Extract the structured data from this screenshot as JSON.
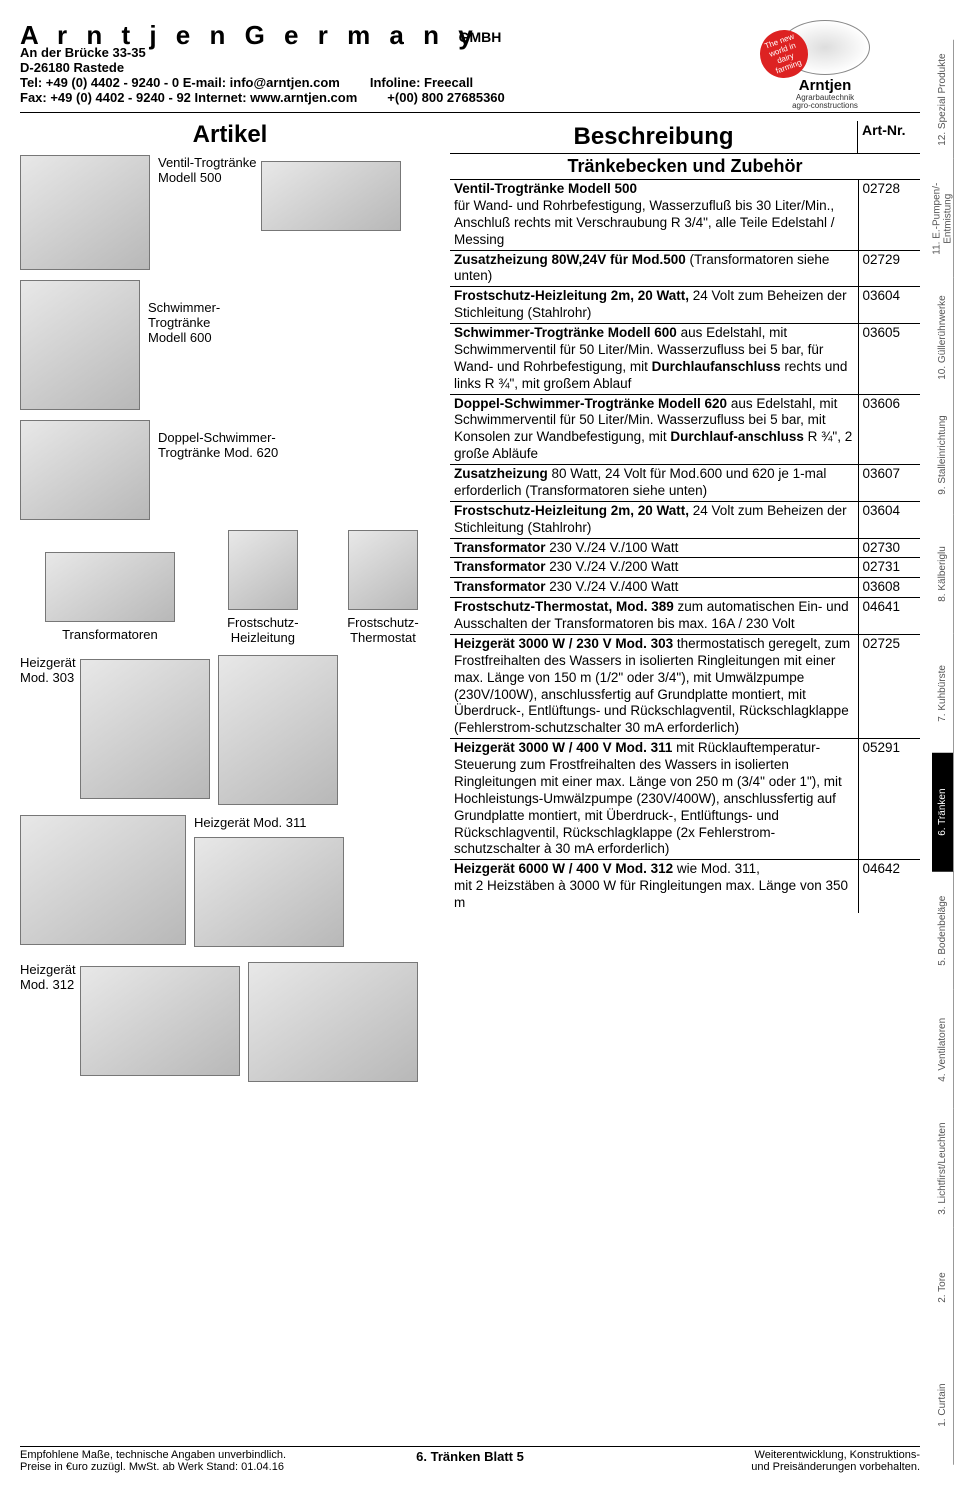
{
  "header": {
    "company": "A r n t j e n   G e r m a n y",
    "gmbh": "GMBH",
    "addr1": "An der Brücke 33-35",
    "addr2": "D-26180 Rastede",
    "tel": "Tel: +49 (0) 4402 - 9240 - 0   E-mail:  info@arntjen.com",
    "fax": "Fax: +49 (0) 4402 - 9240 - 92 Internet: www.arntjen.com",
    "infoline": "Infoline:   Freecall",
    "infonum": "+(00) 800 27685360",
    "logo_text": "Arntjen",
    "logo_sub1": "Agrarbautechnik",
    "logo_sub2": "agro-constructions",
    "red_circle": "The new world in dairy farming"
  },
  "columns": {
    "artikel": "Artikel",
    "beschreibung": "Beschreibung",
    "artnr": "Art-Nr.",
    "section": "Tränkebecken und Zubehör"
  },
  "labels": {
    "p500": "Ventil-Trogtränke\nModell 500",
    "p600": "Schwimmer-\nTrogtränke\nModell 600",
    "p620": "Doppel-Schwimmer-\nTrogtränke Mod. 620",
    "trans": "Transformatoren",
    "frost_heiz": "Frostschutz-\nHeizleitung",
    "frost_therm": "Frostschutz-\nThermostat",
    "h303": "Heizgerät\nMod. 303",
    "h311": "Heizgerät Mod. 311",
    "h312": "Heizgerät\nMod. 312"
  },
  "items": [
    {
      "desc": "<b>Ventil-Trogtränke Modell 500</b><br>für Wand- und Rohrbefestigung, Wasserzufluß bis 30 Liter/Min., Anschluß rechts mit Verschraubung R 3/4\", alle Teile Edelstahl / Messing",
      "code": "02728"
    },
    {
      "desc": "<b>Zusatzheizung 80W,24V für Mod.500</b> (Transformatoren siehe unten)",
      "code": "02729"
    },
    {
      "desc": "<b>Frostschutz-Heizleitung 2m, 20 Watt,</b> 24 Volt zum Beheizen der Stichleitung (Stahlrohr)",
      "code": "03604"
    },
    {
      "desc": "<b>Schwimmer-Trogtränke Modell 600</b> aus Edelstahl, mit Schwimmerventil für 50 Liter/Min. Wasserzufluss bei 5 bar, für Wand- und Rohrbefestigung, mit <b>Durchlaufanschluss</b> rechts und links R ¾\", mit großem Ablauf",
      "code": "03605"
    },
    {
      "desc": "<b>Doppel-Schwimmer-Trogtränke Modell 620</b> aus Edelstahl, mit Schwimmerventil für 50 Liter/Min. Wasserzufluss bei 5 bar, mit Konsolen zur Wandbefestigung, mit <b>Durchlauf-anschluss</b> R ¾\", 2 große Abläufe",
      "code": "03606"
    },
    {
      "desc": "<b>Zusatzheizung</b> 80 Watt, 24 Volt für Mod.600 und 620 je 1-mal erforderlich (Transformatoren siehe unten)",
      "code": "03607"
    },
    {
      "desc": "<b>Frostschutz-Heizleitung 2m, 20 Watt,</b> 24 Volt zum Beheizen der Stichleitung (Stahlrohr)",
      "code": "03604"
    },
    {
      "desc": "<b>Transformator</b> 230 V./24 V./100 Watt",
      "code": "02730"
    },
    {
      "desc": "<b>Transformator</b> 230 V./24 V./200 Watt",
      "code": "02731"
    },
    {
      "desc": "<b>Transformator</b> 230 V./24 V./400 Watt",
      "code": "03608"
    },
    {
      "desc": "<b>Frostschutz-Thermostat, Mod. 389</b> zum automatischen Ein- und Ausschalten der Transformatoren bis max. 16A / 230 Volt",
      "code": "04641"
    },
    {
      "desc": "<b>Heizgerät 3000 W / 230 V Mod. 303</b> thermostatisch geregelt, zum Frostfreihalten des Wassers in isolierten Ringleitungen mit einer max. Länge von 150 m (1/2\" oder 3/4\"), mit Umwälzpumpe (230V/100W), anschlussfertig auf Grundplatte montiert, mit Überdruck-, Entlüftungs- und Rückschlagventil, Rückschlagklappe (Fehlerstrom-schutzschalter 30 mA erforderlich)",
      "code": "02725"
    },
    {
      "desc": "<b>Heizgerät 3000 W / 400 V Mod. 311</b> mit Rücklauftemperatur-Steuerung zum Frostfreihalten des Wassers in isolierten Ringleitungen mit einer max. Länge von 250 m (3/4\" oder 1\"), mit Hochleistungs-Umwälzpumpe (230V/400W), anschlussfertig auf Grundplatte montiert, mit Überdruck-, Entlüftungs- und Rückschlagventil, Rückschlagklappe (2x Fehlerstrom-schutzschalter à 30 mA erforderlich)",
      "code": "05291"
    },
    {
      "desc": "<b>Heizgerät 6000 W / 400 V Mod. 312</b> wie Mod. 311,<br>mit 2 Heizstäben à 3000 W für Ringleitungen  max. Länge von 350 m",
      "code": "04642"
    }
  ],
  "tabs": [
    {
      "label": "1. Curtain",
      "active": false
    },
    {
      "label": "2. Tore",
      "active": false
    },
    {
      "label": "3. Lichtfirst/Leuchten",
      "active": false
    },
    {
      "label": "4. Ventilatoren",
      "active": false
    },
    {
      "label": "5. Bodenbeläge",
      "active": false
    },
    {
      "label": "6. Tränken",
      "active": true
    },
    {
      "label": "7. Kuhbürste",
      "active": false
    },
    {
      "label": "8. Kälberiglu",
      "active": false
    },
    {
      "label": "9. Stalleinrichtung",
      "active": false
    },
    {
      "label": "10. Güllerührwerke",
      "active": false
    },
    {
      "label": "11. E.-Pumpen/-Entmistung",
      "active": false
    },
    {
      "label": "12. Spezial Produkte",
      "active": false
    }
  ],
  "footer": {
    "left1": "Empfohlene Maße, technische Angaben unverbindlich.",
    "left2": "Preise in €uro zuzügl. MwSt. ab Werk Stand: 01.04.16",
    "center": "6. Tränken Blatt 5",
    "right1": "Weiterentwicklung, Konstruktions-",
    "right2": "und Preisänderungen vorbehalten."
  }
}
